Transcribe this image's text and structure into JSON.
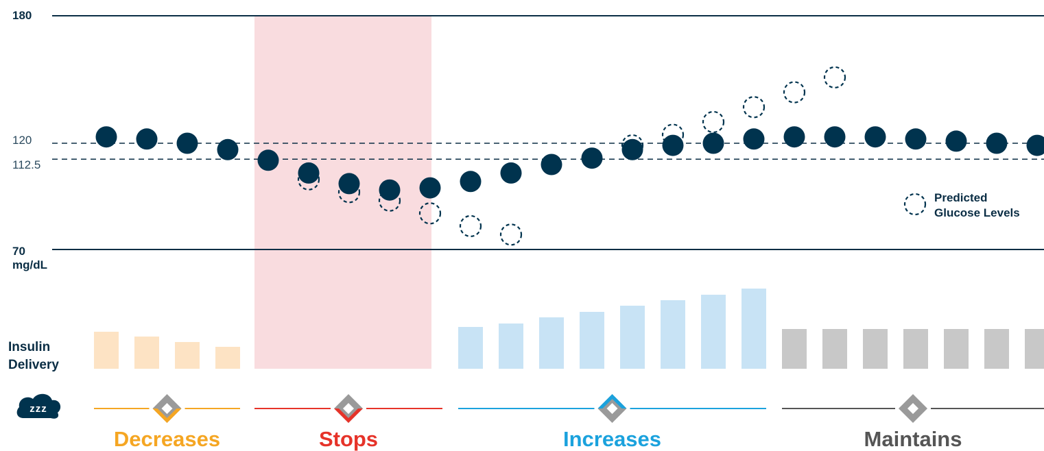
{
  "chart_data": {
    "type": "scatter",
    "y_axis": {
      "unit": "mg/dL",
      "range_lines": [
        70,
        180
      ],
      "target_lines": [
        112.5,
        120
      ],
      "tick_labels": [
        "180",
        "120",
        "112.5",
        "70"
      ]
    },
    "glucose": {
      "actual": [
        123,
        122,
        120,
        117,
        112,
        106,
        101,
        98,
        99,
        102,
        106,
        110,
        113,
        117,
        119,
        120,
        122,
        123,
        123,
        123,
        122,
        121,
        120,
        119
      ],
      "predicted": [
        null,
        null,
        null,
        null,
        null,
        103,
        97,
        93,
        87,
        81,
        77,
        null,
        null,
        119,
        124,
        130,
        137,
        144,
        151,
        null,
        null,
        null,
        null,
        null
      ]
    },
    "insulin_delivery": {
      "label": "Insulin Delivery",
      "values": [
        54,
        47,
        39,
        32,
        null,
        null,
        null,
        null,
        null,
        61,
        66,
        75,
        83,
        92,
        100,
        108,
        117,
        58,
        58,
        58,
        58,
        58,
        58,
        58
      ]
    },
    "modes": [
      {
        "label": "Decreases",
        "color": "#f5a623",
        "bar_color": "#fde3c4",
        "start": 0,
        "end": 3
      },
      {
        "label": "Stops",
        "color": "#e63329",
        "bar_color": "#f9dcdf",
        "start": 4,
        "end": 8
      },
      {
        "label": "Increases",
        "color": "#1ba2dd",
        "bar_color": "#c8e3f5",
        "start": 9,
        "end": 16
      },
      {
        "label": "Maintains",
        "color": "#555555",
        "bar_color": "#c8c8c8",
        "start": 17,
        "end": 23
      }
    ],
    "legend": {
      "label_line1": "Predicted",
      "label_line2": "Glucose Levels",
      "placement": "right"
    },
    "sleep_label": "zzz",
    "colors": {
      "actual": "#00334e",
      "predicted": "#00334e",
      "lines": "#0a2d44",
      "stop_zone": "#f9dcdf"
    }
  }
}
